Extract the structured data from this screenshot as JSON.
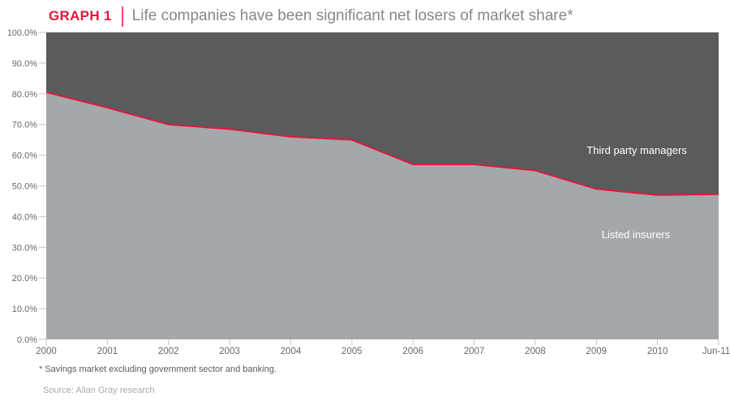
{
  "header": {
    "badge": "GRAPH 1",
    "title": "Life companies have been significant net losers of market share*"
  },
  "footnote": "* Savings market excluding government sector and banking.",
  "source": "Source: Allan Gray research",
  "colors": {
    "accent_red": "#e2183d",
    "area_dark_gray": "#595b5d",
    "area_light_gray": "#a4a8aa",
    "axis_text_gray": "#66686b",
    "tick_gray": "#c3c5c7",
    "in_plot_label_white": "#ffffff"
  },
  "chart_data": {
    "type": "area",
    "stacked": true,
    "stacked_to": 100,
    "title": "Life companies have been significant net losers of market share*",
    "xlabel": "",
    "ylabel": "",
    "categories": [
      "2000",
      "2001",
      "2002",
      "2003",
      "2004",
      "2005",
      "2006",
      "2007",
      "2008",
      "2009",
      "2010",
      "Jun-11"
    ],
    "series": [
      {
        "name": "Listed insurers",
        "color": "#a4a8aa",
        "values": [
          80.5,
          75.5,
          70,
          68.5,
          66,
          65,
          57,
          57,
          55,
          49,
          47,
          47.3
        ]
      },
      {
        "name": "Third party managers",
        "color": "#595b5d",
        "values": [
          19.5,
          24.5,
          30,
          31.5,
          34,
          35,
          43,
          43,
          45,
          51,
          53,
          52.7
        ]
      }
    ],
    "boundary_line_color": "#e2183d",
    "ylim": [
      0,
      100
    ],
    "ytick_labels": [
      "100.0%",
      "90.0%",
      "80.0%",
      "70.0%",
      "60.0%",
      "50.0%",
      "40.0%",
      "30.0%",
      "20.0%",
      "10.0%",
      "0.0%"
    ],
    "grid": false,
    "legend": "labels-inside-areas"
  }
}
